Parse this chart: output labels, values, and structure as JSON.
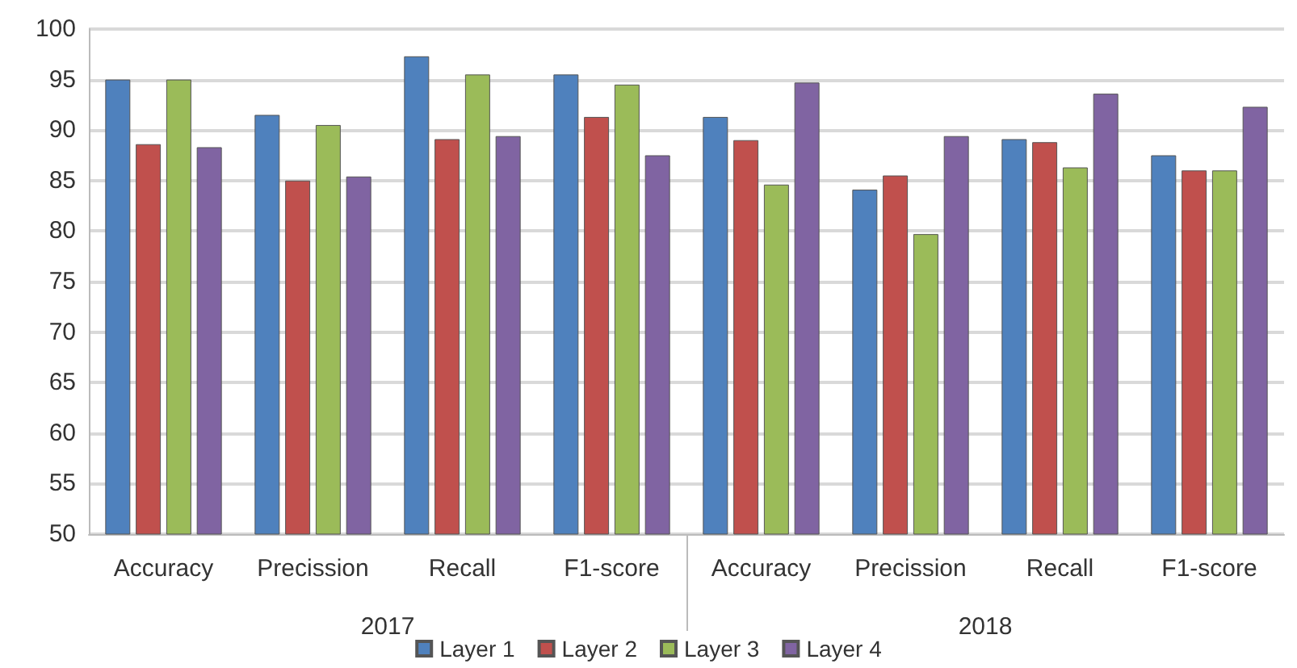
{
  "chart_data": {
    "type": "bar",
    "categories": [
      "Accuracy",
      "Precission",
      "Recall",
      "F1-score",
      "Accuracy",
      "Precission",
      "Recall",
      "F1-score"
    ],
    "annotations": [
      "2017",
      "2018"
    ],
    "series": [
      {
        "name": "Layer 1",
        "color": "#4f81bd",
        "values": [
          95,
          91.5,
          97.3,
          95.5,
          91.3,
          84.1,
          89.1,
          87.5
        ]
      },
      {
        "name": "Layer 2",
        "color": "#c0504d",
        "values": [
          88.6,
          85,
          89.1,
          91.3,
          89,
          85.5,
          88.8,
          86
        ]
      },
      {
        "name": "Layer 3",
        "color": "#9bbb59",
        "values": [
          95,
          90.5,
          95.5,
          94.5,
          84.6,
          79.7,
          86.3,
          86
        ]
      },
      {
        "name": "Layer 4",
        "color": "#8064a2",
        "values": [
          88.3,
          85.4,
          89.4,
          87.5,
          94.7,
          89.4,
          93.6,
          92.3
        ]
      }
    ],
    "ylim": [
      50,
      100
    ],
    "yticks": [
      50,
      55,
      60,
      65,
      70,
      75,
      80,
      85,
      90,
      95,
      100
    ],
    "grid": "y",
    "legend": "bottom"
  }
}
